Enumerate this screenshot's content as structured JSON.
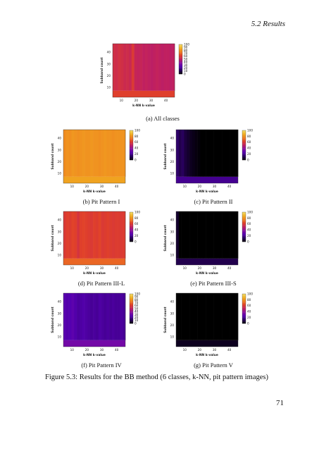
{
  "header": {
    "running_head": "5.2  Results"
  },
  "page_number": "71",
  "figure_caption": "Figure 5.3: Results for the BB method (6 classes, k-NN, pit pattern images)",
  "colors": {
    "scale": [
      "#000000",
      "#2a0060",
      "#5500b0",
      "#8a10a0",
      "#c02060",
      "#e0402a",
      "#f08020",
      "#f0b020",
      "#f5e070"
    ]
  },
  "chart_data": [
    {
      "type": "heatmap",
      "id": "a",
      "caption": "(a) All classes",
      "xlabel": "k-NN k-value",
      "ylabel": "Subband count",
      "xticks": [
        "10",
        "20",
        "30",
        "40"
      ],
      "yticks": [
        "10",
        "20",
        "30",
        "40"
      ],
      "colorbar_ticks": [
        "100",
        "90",
        "80",
        "70",
        "60",
        "50",
        "40",
        "30",
        "20",
        "10",
        "0"
      ],
      "band_levels": [
        56,
        55,
        57,
        56,
        54,
        55,
        53,
        60,
        52,
        51,
        52,
        50,
        51,
        50,
        49,
        50,
        51,
        50,
        49,
        50,
        50,
        49,
        50
      ],
      "bottom_level": 62
    },
    {
      "type": "heatmap",
      "id": "b",
      "caption": "(b) Pit Pattern I",
      "xlabel": "k-NN k-value",
      "ylabel": "Subband count",
      "xticks": [
        "10",
        "20",
        "30",
        "40"
      ],
      "yticks": [
        "10",
        "20",
        "30",
        "40"
      ],
      "colorbar_ticks": [
        "100",
        "80",
        "60",
        "40",
        "20",
        "0"
      ],
      "band_levels": [
        78,
        80,
        79,
        81,
        80,
        79,
        80,
        81,
        80,
        80,
        81,
        80,
        80,
        79,
        80,
        81,
        80,
        80,
        79,
        80,
        80,
        80,
        80
      ],
      "bottom_level": 84
    },
    {
      "type": "heatmap",
      "id": "c",
      "caption": "(c) Pit Pattern II",
      "xlabel": "k-NN k-value",
      "ylabel": "Subband count",
      "xticks": [
        "10",
        "20",
        "30",
        "40"
      ],
      "yticks": [
        "10",
        "20",
        "30",
        "40"
      ],
      "colorbar_ticks": [
        "100",
        "80",
        "60",
        "40",
        "20",
        "0"
      ],
      "band_levels": [
        14,
        10,
        12,
        8,
        6,
        4,
        3,
        2,
        1,
        0,
        0,
        0,
        0,
        0,
        0,
        0,
        0,
        0,
        0,
        0,
        0,
        0,
        0
      ],
      "bottom_level": 20
    },
    {
      "type": "heatmap",
      "id": "d",
      "caption": "(d) Pit Pattern III-L",
      "xlabel": "k-NN k-value",
      "ylabel": "Subband count",
      "xticks": [
        "10",
        "20",
        "30",
        "40"
      ],
      "yticks": [
        "10",
        "20",
        "30",
        "40"
      ],
      "colorbar_ticks": [
        "100",
        "80",
        "60",
        "40",
        "20",
        "0"
      ],
      "band_levels": [
        60,
        62,
        61,
        63,
        62,
        58,
        62,
        63,
        62,
        61,
        60,
        62,
        61,
        63,
        60,
        61,
        62,
        61,
        60,
        61,
        61,
        60,
        61
      ],
      "bottom_level": 70
    },
    {
      "type": "heatmap",
      "id": "e",
      "caption": "(e) Pit Pattern III-S",
      "xlabel": "k-NN k-value",
      "ylabel": "Subband count",
      "xticks": [
        "10",
        "20",
        "30",
        "40"
      ],
      "yticks": [
        "10",
        "20",
        "30",
        "40"
      ],
      "colorbar_ticks": [
        "100",
        "80",
        "60",
        "40",
        "20",
        "0"
      ],
      "band_levels": [
        6,
        0,
        0,
        0,
        0,
        0,
        0,
        0,
        0,
        0,
        0,
        0,
        0,
        0,
        0,
        0,
        0,
        0,
        0,
        0,
        0,
        0,
        0
      ],
      "bottom_level": 10
    },
    {
      "type": "heatmap",
      "id": "f",
      "caption": "(f) Pit Pattern IV",
      "xlabel": "k-NN k-value",
      "ylabel": "Subband count",
      "xticks": [
        "10",
        "20",
        "30",
        "40"
      ],
      "yticks": [
        "10",
        "20",
        "30",
        "40"
      ],
      "colorbar_ticks": [
        "100",
        "90",
        "80",
        "70",
        "60",
        "50",
        "40",
        "30",
        "20",
        "10",
        "0"
      ],
      "band_levels": [
        26,
        24,
        25,
        27,
        24,
        22,
        23,
        24,
        23,
        22,
        21,
        22,
        21,
        23,
        22,
        21,
        22,
        21,
        22,
        21,
        21,
        22,
        21
      ],
      "bottom_level": 32
    },
    {
      "type": "heatmap",
      "id": "g",
      "caption": "(g) Pit Pattern V",
      "xlabel": "k-NN k-value",
      "ylabel": "Subband count",
      "xticks": [
        "10",
        "20",
        "30",
        "40"
      ],
      "yticks": [
        "10",
        "20",
        "30",
        "40"
      ],
      "colorbar_ticks": [
        "100",
        "80",
        "60",
        "40",
        "20",
        "0"
      ],
      "band_levels": [
        0,
        0,
        0,
        0,
        0,
        0,
        0,
        0,
        0,
        0,
        0,
        0,
        0,
        0,
        0,
        0,
        0,
        0,
        0,
        0,
        0,
        0,
        0
      ],
      "bottom_level": 4
    }
  ]
}
